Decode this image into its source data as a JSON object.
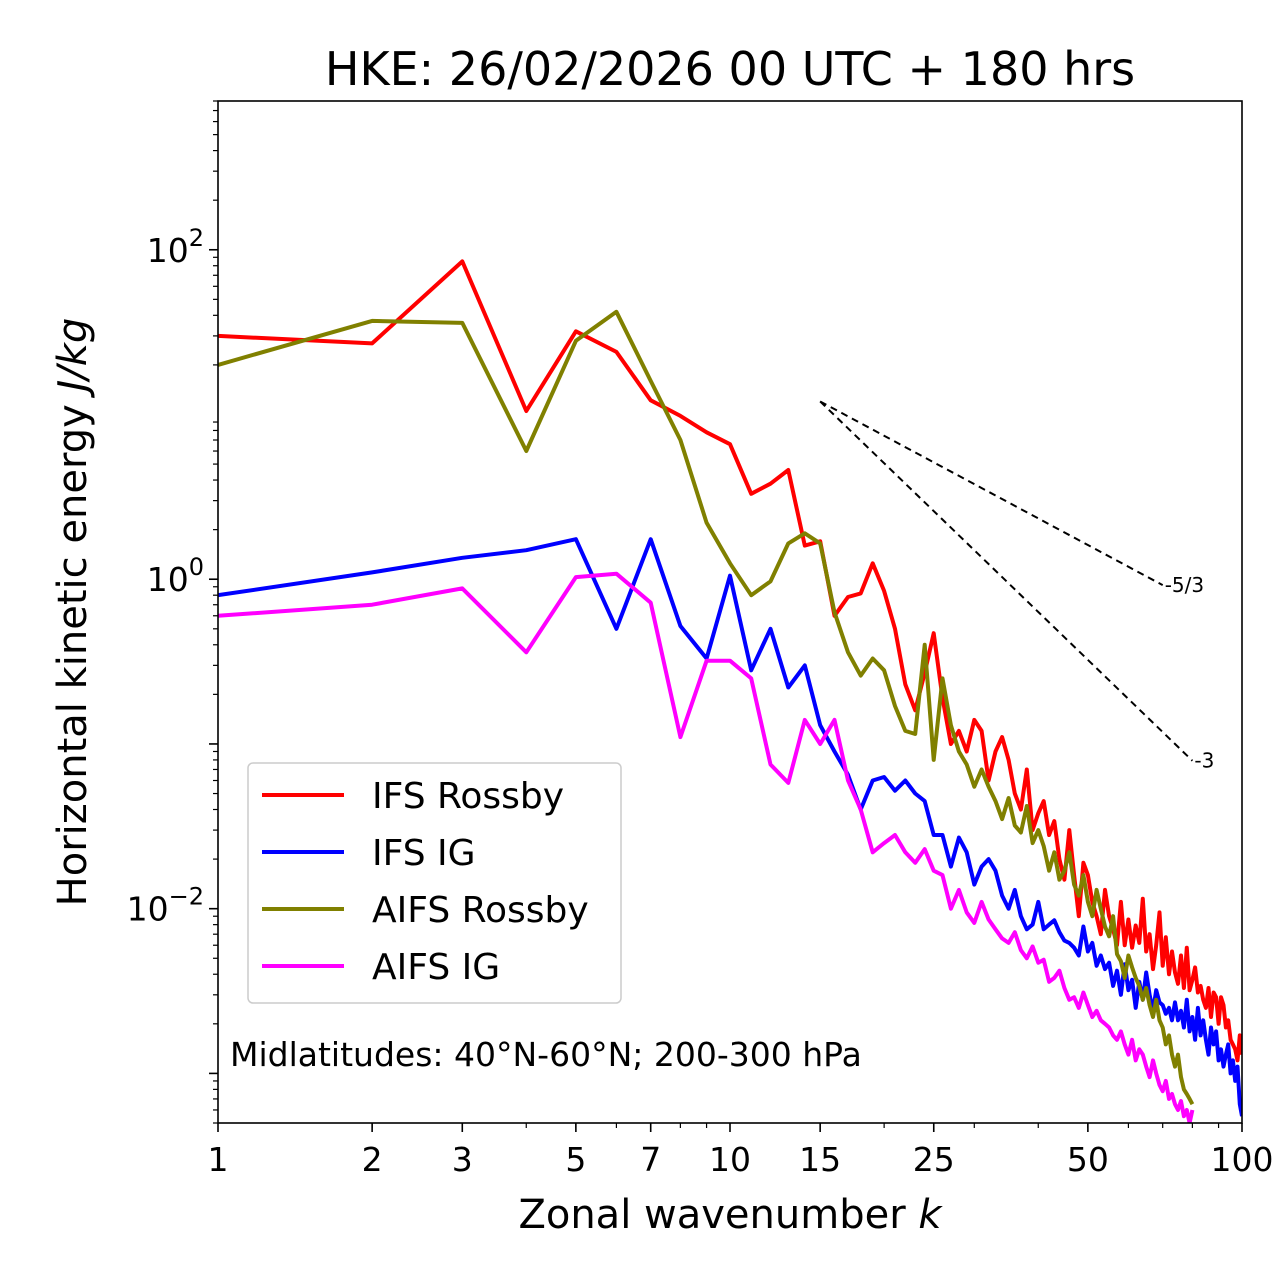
{
  "chart_data": {
    "type": "line",
    "scale": "log-log",
    "title": "HKE: 26/02/2026 00 UTC + 180 hrs",
    "xlabel": "Zonal wavenumber ",
    "xlabel_italic": "k",
    "ylabel": "Horizontal kinetic energy ",
    "ylabel_italic": "J/kg",
    "xlim": [
      1,
      100
    ],
    "ylim": [
      0.0005,
      800
    ],
    "x_ticks": [
      1,
      2,
      3,
      5,
      7,
      10,
      15,
      25,
      50,
      100
    ],
    "x_tick_labels": [
      "1",
      "2",
      "3",
      "5",
      "7",
      "10",
      "15",
      "25",
      "50",
      "100"
    ],
    "y_ticks": [
      {
        "value": 0.01,
        "base": "10",
        "exp": "−2"
      },
      {
        "value": 1,
        "base": "10",
        "exp": "0"
      },
      {
        "value": 100,
        "base": "10",
        "exp": "2"
      }
    ],
    "annotation": "Midlatitudes: 40°N-60°N; 200-300 hPa",
    "legend_position": "lower-left",
    "slope_lines": [
      {
        "label": "-5/3",
        "slope": -1.6667,
        "x0": 15,
        "y0": 12,
        "x1": 70
      },
      {
        "label": "-3",
        "slope": -3,
        "x0": 15,
        "y0": 12,
        "x1": 80
      }
    ],
    "series": [
      {
        "name": "IFS Rossby",
        "color": "#ff0000",
        "x": [
          1,
          2,
          3,
          4,
          5,
          6,
          7,
          8,
          9,
          10,
          11,
          12,
          13,
          14,
          15,
          16,
          17,
          18,
          19,
          20,
          21,
          22,
          23,
          24,
          25,
          26,
          27,
          28,
          29,
          30,
          31,
          32,
          33,
          34,
          35,
          36,
          37,
          38,
          39,
          40,
          41,
          42,
          43,
          44,
          45,
          46,
          47,
          48,
          49,
          50,
          51,
          52,
          53,
          54,
          55,
          56,
          57,
          58,
          59,
          60,
          61,
          62,
          63,
          64,
          65,
          66,
          67,
          68,
          69,
          70,
          71,
          72,
          73,
          74,
          75,
          76,
          77,
          78,
          79,
          80,
          81,
          82,
          83,
          84,
          85,
          86,
          87,
          88,
          89,
          90,
          91,
          92,
          93,
          94,
          95,
          96,
          97,
          98,
          99,
          100
        ],
        "y": [
          30,
          27,
          85,
          10.5,
          32,
          24,
          12.2,
          9.8,
          7.8,
          6.6,
          3.3,
          3.8,
          4.6,
          1.6,
          1.7,
          0.6,
          0.78,
          0.82,
          1.25,
          0.85,
          0.5,
          0.23,
          0.16,
          0.27,
          0.47,
          0.19,
          0.1,
          0.12,
          0.09,
          0.14,
          0.12,
          0.06,
          0.09,
          0.11,
          0.08,
          0.05,
          0.04,
          0.07,
          0.03,
          0.038,
          0.045,
          0.028,
          0.034,
          0.02,
          0.015,
          0.03,
          0.016,
          0.009,
          0.019,
          0.016,
          0.011,
          0.009,
          0.007,
          0.013,
          0.009,
          0.0075,
          0.006,
          0.011,
          0.006,
          0.0086,
          0.0058,
          0.0079,
          0.0062,
          0.0115,
          0.0055,
          0.007,
          0.0043,
          0.006,
          0.0095,
          0.0045,
          0.0067,
          0.004,
          0.0055,
          0.0041,
          0.0035,
          0.0052,
          0.0033,
          0.0058,
          0.0032,
          0.0037,
          0.0044,
          0.0031,
          0.0034,
          0.0028,
          0.0025,
          0.0033,
          0.0022,
          0.0031,
          0.0029,
          0.002,
          0.0029,
          0.0026,
          0.0019,
          0.0021,
          0.0016,
          0.0015,
          0.0014,
          0.0012,
          0.0017,
          0.0013
        ]
      },
      {
        "name": "IFS IG",
        "color": "#0000ff",
        "x": [
          1,
          2,
          3,
          4,
          5,
          6,
          7,
          8,
          9,
          10,
          11,
          12,
          13,
          14,
          15,
          16,
          17,
          18,
          19,
          20,
          21,
          22,
          23,
          24,
          25,
          26,
          27,
          28,
          29,
          30,
          31,
          32,
          33,
          34,
          35,
          36,
          37,
          38,
          39,
          40,
          41,
          42,
          43,
          44,
          45,
          46,
          47,
          48,
          49,
          50,
          51,
          52,
          53,
          54,
          55,
          56,
          57,
          58,
          59,
          60,
          61,
          62,
          63,
          64,
          65,
          66,
          67,
          68,
          69,
          70,
          71,
          72,
          73,
          74,
          75,
          76,
          77,
          78,
          79,
          80,
          81,
          82,
          83,
          84,
          85,
          86,
          87,
          88,
          89,
          90,
          91,
          92,
          93,
          94,
          95,
          96,
          97,
          98,
          99,
          100
        ],
        "y": [
          0.8,
          1.1,
          1.35,
          1.5,
          1.75,
          0.5,
          1.75,
          0.52,
          0.33,
          1.05,
          0.28,
          0.5,
          0.22,
          0.3,
          0.13,
          0.09,
          0.065,
          0.04,
          0.06,
          0.063,
          0.052,
          0.06,
          0.05,
          0.045,
          0.028,
          0.028,
          0.018,
          0.027,
          0.022,
          0.014,
          0.018,
          0.02,
          0.017,
          0.012,
          0.01,
          0.013,
          0.009,
          0.0075,
          0.008,
          0.011,
          0.0075,
          0.008,
          0.0085,
          0.0072,
          0.0064,
          0.0062,
          0.0058,
          0.0052,
          0.0078,
          0.0055,
          0.0062,
          0.0045,
          0.0052,
          0.0043,
          0.0047,
          0.0034,
          0.0042,
          0.003,
          0.0046,
          0.0032,
          0.0037,
          0.0025,
          0.0036,
          0.0028,
          0.0041,
          0.003,
          0.0024,
          0.0032,
          0.0027,
          0.0026,
          0.0023,
          0.0025,
          0.0021,
          0.0027,
          0.0021,
          0.0024,
          0.0019,
          0.0028,
          0.0018,
          0.0022,
          0.0016,
          0.0025,
          0.0017,
          0.0021,
          0.0016,
          0.0013,
          0.0019,
          0.0015,
          0.0018,
          0.0012,
          0.0014,
          0.0011,
          0.0013,
          0.0015,
          0.001,
          0.0012,
          0.0009,
          0.0011,
          0.00065,
          0.00055
        ]
      },
      {
        "name": "AIFS Rossby",
        "color": "#808000",
        "x": [
          1,
          2,
          3,
          4,
          5,
          6,
          7,
          8,
          9,
          10,
          11,
          12,
          13,
          14,
          15,
          16,
          17,
          18,
          19,
          20,
          21,
          22,
          23,
          24,
          25,
          26,
          27,
          28,
          29,
          30,
          31,
          32,
          33,
          34,
          35,
          36,
          37,
          38,
          39,
          40,
          41,
          42,
          43,
          44,
          45,
          46,
          47,
          48,
          49,
          50,
          51,
          52,
          53,
          54,
          55,
          56,
          57,
          58,
          59,
          60,
          61,
          62,
          63,
          64,
          65,
          66,
          67,
          68,
          69,
          70,
          71,
          72,
          73,
          74,
          75,
          76,
          77,
          78,
          79,
          80
        ],
        "y": [
          20,
          37,
          36,
          6,
          28,
          42,
          16,
          7,
          2.2,
          1.25,
          0.8,
          0.97,
          1.65,
          1.9,
          1.65,
          0.63,
          0.36,
          0.26,
          0.33,
          0.28,
          0.17,
          0.12,
          0.115,
          0.4,
          0.08,
          0.25,
          0.13,
          0.09,
          0.075,
          0.055,
          0.07,
          0.055,
          0.045,
          0.035,
          0.047,
          0.032,
          0.029,
          0.042,
          0.025,
          0.03,
          0.024,
          0.017,
          0.022,
          0.015,
          0.017,
          0.022,
          0.014,
          0.012,
          0.016,
          0.011,
          0.009,
          0.013,
          0.01,
          0.0078,
          0.0068,
          0.009,
          0.0053,
          0.0048,
          0.0038,
          0.0052,
          0.0044,
          0.0038,
          0.0034,
          0.0028,
          0.0033,
          0.0026,
          0.0022,
          0.0028,
          0.0021,
          0.0019,
          0.0015,
          0.0017,
          0.0013,
          0.0011,
          0.0013,
          0.00095,
          0.0008,
          0.00075,
          0.0007,
          0.00065
        ]
      },
      {
        "name": "AIFS IG",
        "color": "#ff00ff",
        "x": [
          1,
          2,
          3,
          4,
          5,
          6,
          7,
          8,
          9,
          10,
          11,
          12,
          13,
          14,
          15,
          16,
          17,
          18,
          19,
          20,
          21,
          22,
          23,
          24,
          25,
          26,
          27,
          28,
          29,
          30,
          31,
          32,
          33,
          34,
          35,
          36,
          37,
          38,
          39,
          40,
          41,
          42,
          43,
          44,
          45,
          46,
          47,
          48,
          49,
          50,
          51,
          52,
          53,
          54,
          55,
          56,
          57,
          58,
          59,
          60,
          61,
          62,
          63,
          64,
          65,
          66,
          67,
          68,
          69,
          70,
          71,
          72,
          73,
          74,
          75,
          76,
          77,
          78,
          79,
          80
        ],
        "y": [
          0.6,
          0.7,
          0.88,
          0.36,
          1.03,
          1.08,
          0.72,
          0.11,
          0.32,
          0.32,
          0.25,
          0.075,
          0.058,
          0.14,
          0.1,
          0.14,
          0.06,
          0.04,
          0.022,
          0.025,
          0.028,
          0.022,
          0.019,
          0.023,
          0.017,
          0.016,
          0.01,
          0.013,
          0.0095,
          0.0082,
          0.011,
          0.0086,
          0.0075,
          0.0066,
          0.0062,
          0.0072,
          0.0056,
          0.005,
          0.0059,
          0.0047,
          0.0049,
          0.0036,
          0.0038,
          0.0042,
          0.0033,
          0.0028,
          0.0029,
          0.0025,
          0.0031,
          0.0026,
          0.0022,
          0.0024,
          0.0021,
          0.002,
          0.0019,
          0.0017,
          0.0016,
          0.0018,
          0.0015,
          0.0013,
          0.0016,
          0.0012,
          0.0014,
          0.0013,
          0.0011,
          0.00095,
          0.0012,
          0.001,
          0.00085,
          0.00078,
          0.0009,
          0.0007,
          0.00075,
          0.00065,
          0.0006,
          0.00068,
          0.00055,
          0.0006,
          0.0005,
          0.0006
        ]
      }
    ]
  }
}
